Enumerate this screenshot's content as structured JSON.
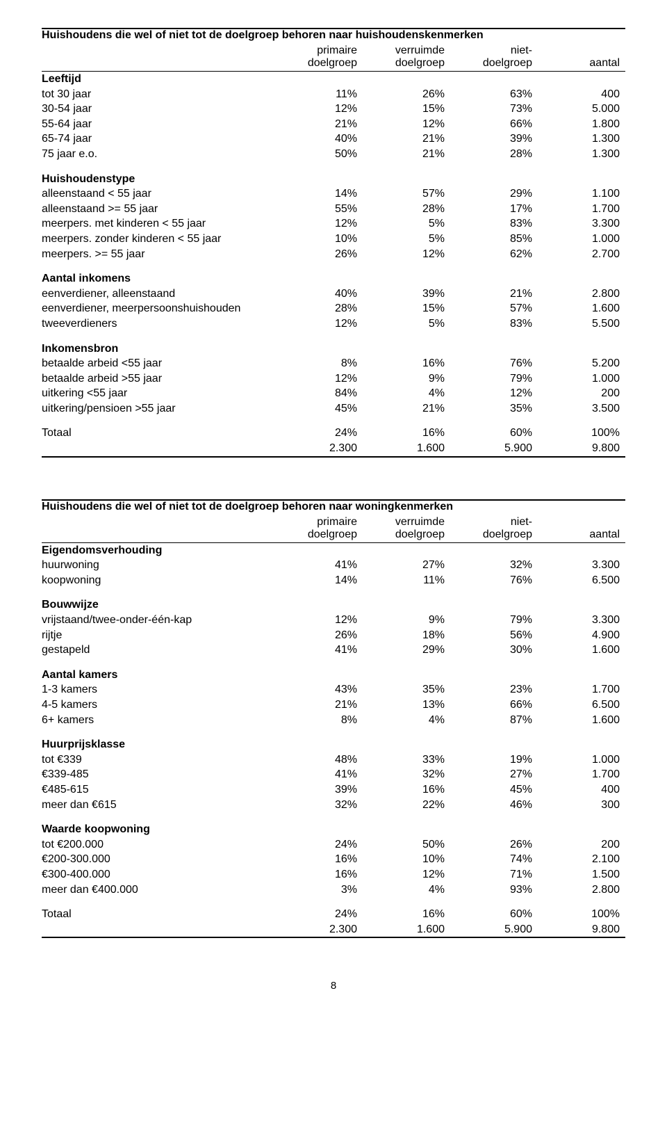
{
  "page_number": "8",
  "tables": [
    {
      "title": "Huishoudens die wel of niet tot de doelgroep behoren naar huishoudenskenmerken",
      "columns": [
        "",
        "primaire doelgroep",
        "verruimde doelgroep",
        "niet- doelgroep",
        "aantal"
      ],
      "sections": [
        {
          "heading": "Leeftijd",
          "rows": [
            [
              "tot 30 jaar",
              "11%",
              "26%",
              "63%",
              "400"
            ],
            [
              "30-54 jaar",
              "12%",
              "15%",
              "73%",
              "5.000"
            ],
            [
              "55-64 jaar",
              "21%",
              "12%",
              "66%",
              "1.800"
            ],
            [
              "65-74 jaar",
              "40%",
              "21%",
              "39%",
              "1.300"
            ],
            [
              "75 jaar e.o.",
              "50%",
              "21%",
              "28%",
              "1.300"
            ]
          ]
        },
        {
          "heading": "Huishoudenstype",
          "rows": [
            [
              "alleenstaand < 55 jaar",
              "14%",
              "57%",
              "29%",
              "1.100"
            ],
            [
              "alleenstaand >= 55 jaar",
              "55%",
              "28%",
              "17%",
              "1.700"
            ],
            [
              "meerpers. met kinderen < 55 jaar",
              "12%",
              "5%",
              "83%",
              "3.300"
            ],
            [
              "meerpers. zonder kinderen < 55 jaar",
              "10%",
              "5%",
              "85%",
              "1.000"
            ],
            [
              "meerpers. >= 55 jaar",
              "26%",
              "12%",
              "62%",
              "2.700"
            ]
          ]
        },
        {
          "heading": "Aantal inkomens",
          "rows": [
            [
              "eenverdiener, alleenstaand",
              "40%",
              "39%",
              "21%",
              "2.800"
            ],
            [
              "eenverdiener, meerpersoonshuishouden",
              "28%",
              "15%",
              "57%",
              "1.600"
            ],
            [
              "tweeverdieners",
              "12%",
              "5%",
              "83%",
              "5.500"
            ]
          ]
        },
        {
          "heading": "Inkomensbron",
          "rows": [
            [
              "betaalde arbeid <55 jaar",
              "8%",
              "16%",
              "76%",
              "5.200"
            ],
            [
              "betaalde arbeid >55 jaar",
              "12%",
              "9%",
              "79%",
              "1.000"
            ],
            [
              "uitkering <55 jaar",
              "84%",
              "4%",
              "12%",
              "200"
            ],
            [
              "uitkering/pensioen >55 jaar",
              "45%",
              "21%",
              "35%",
              "3.500"
            ]
          ]
        }
      ],
      "totals": [
        [
          "Totaal",
          "24%",
          "16%",
          "60%",
          "100%"
        ],
        [
          "",
          "2.300",
          "1.600",
          "5.900",
          "9.800"
        ]
      ]
    },
    {
      "title": "Huishoudens die wel of niet tot de doelgroep behoren naar woningkenmerken",
      "columns": [
        "",
        "primaire doelgroep",
        "verruimde doelgroep",
        "niet- doelgroep",
        "aantal"
      ],
      "sections": [
        {
          "heading": "Eigendomsverhouding",
          "rows": [
            [
              "huurwoning",
              "41%",
              "27%",
              "32%",
              "3.300"
            ],
            [
              "koopwoning",
              "14%",
              "11%",
              "76%",
              "6.500"
            ]
          ]
        },
        {
          "heading": "Bouwwijze",
          "rows": [
            [
              "vrijstaand/twee-onder-één-kap",
              "12%",
              "9%",
              "79%",
              "3.300"
            ],
            [
              "rijtje",
              "26%",
              "18%",
              "56%",
              "4.900"
            ],
            [
              "gestapeld",
              "41%",
              "29%",
              "30%",
              "1.600"
            ]
          ]
        },
        {
          "heading": "Aantal kamers",
          "rows": [
            [
              "1-3 kamers",
              "43%",
              "35%",
              "23%",
              "1.700"
            ],
            [
              "4-5 kamers",
              "21%",
              "13%",
              "66%",
              "6.500"
            ],
            [
              "6+ kamers",
              "8%",
              "4%",
              "87%",
              "1.600"
            ]
          ]
        },
        {
          "heading": "Huurprijsklasse",
          "rows": [
            [
              "tot €339",
              "48%",
              "33%",
              "19%",
              "1.000"
            ],
            [
              "€339-485",
              "41%",
              "32%",
              "27%",
              "1.700"
            ],
            [
              "€485-615",
              "39%",
              "16%",
              "45%",
              "400"
            ],
            [
              "meer dan €615",
              "32%",
              "22%",
              "46%",
              "300"
            ]
          ]
        },
        {
          "heading": "Waarde koopwoning",
          "rows": [
            [
              "tot €200.000",
              "24%",
              "50%",
              "26%",
              "200"
            ],
            [
              "€200-300.000",
              "16%",
              "10%",
              "74%",
              "2.100"
            ],
            [
              "€300-400.000",
              "16%",
              "12%",
              "71%",
              "1.500"
            ],
            [
              "meer dan €400.000",
              "3%",
              "4%",
              "93%",
              "2.800"
            ]
          ]
        }
      ],
      "totals": [
        [
          "Totaal",
          "24%",
          "16%",
          "60%",
          "100%"
        ],
        [
          "",
          "2.300",
          "1.600",
          "5.900",
          "9.800"
        ]
      ]
    }
  ]
}
